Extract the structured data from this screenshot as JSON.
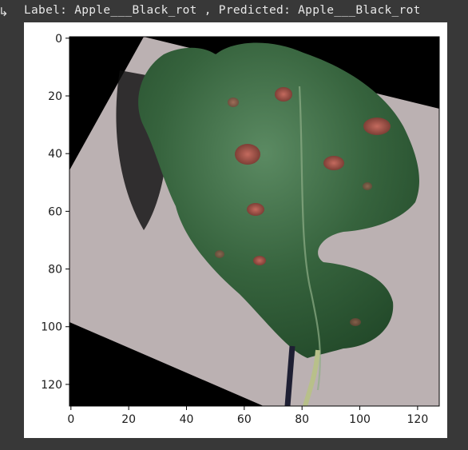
{
  "output": {
    "icon": "output-arrow-icon",
    "stdout_text": "Label: Apple___Black_rot , Predicted: Apple___Black_rot"
  },
  "figure": {
    "image_content": "apple leaf with black rot spots on grey background",
    "x_ticks": [
      "0",
      "20",
      "40",
      "60",
      "80",
      "100",
      "120"
    ],
    "y_ticks": [
      "0",
      "20",
      "40",
      "60",
      "80",
      "100",
      "120"
    ],
    "x_range": [
      0,
      127
    ],
    "y_range": [
      0,
      127
    ]
  },
  "colors": {
    "background": "#383838",
    "figure_bg": "#ffffff",
    "leaf": "#2f5a36",
    "paper": "#b9aeb0",
    "spot": "#a0524a"
  }
}
